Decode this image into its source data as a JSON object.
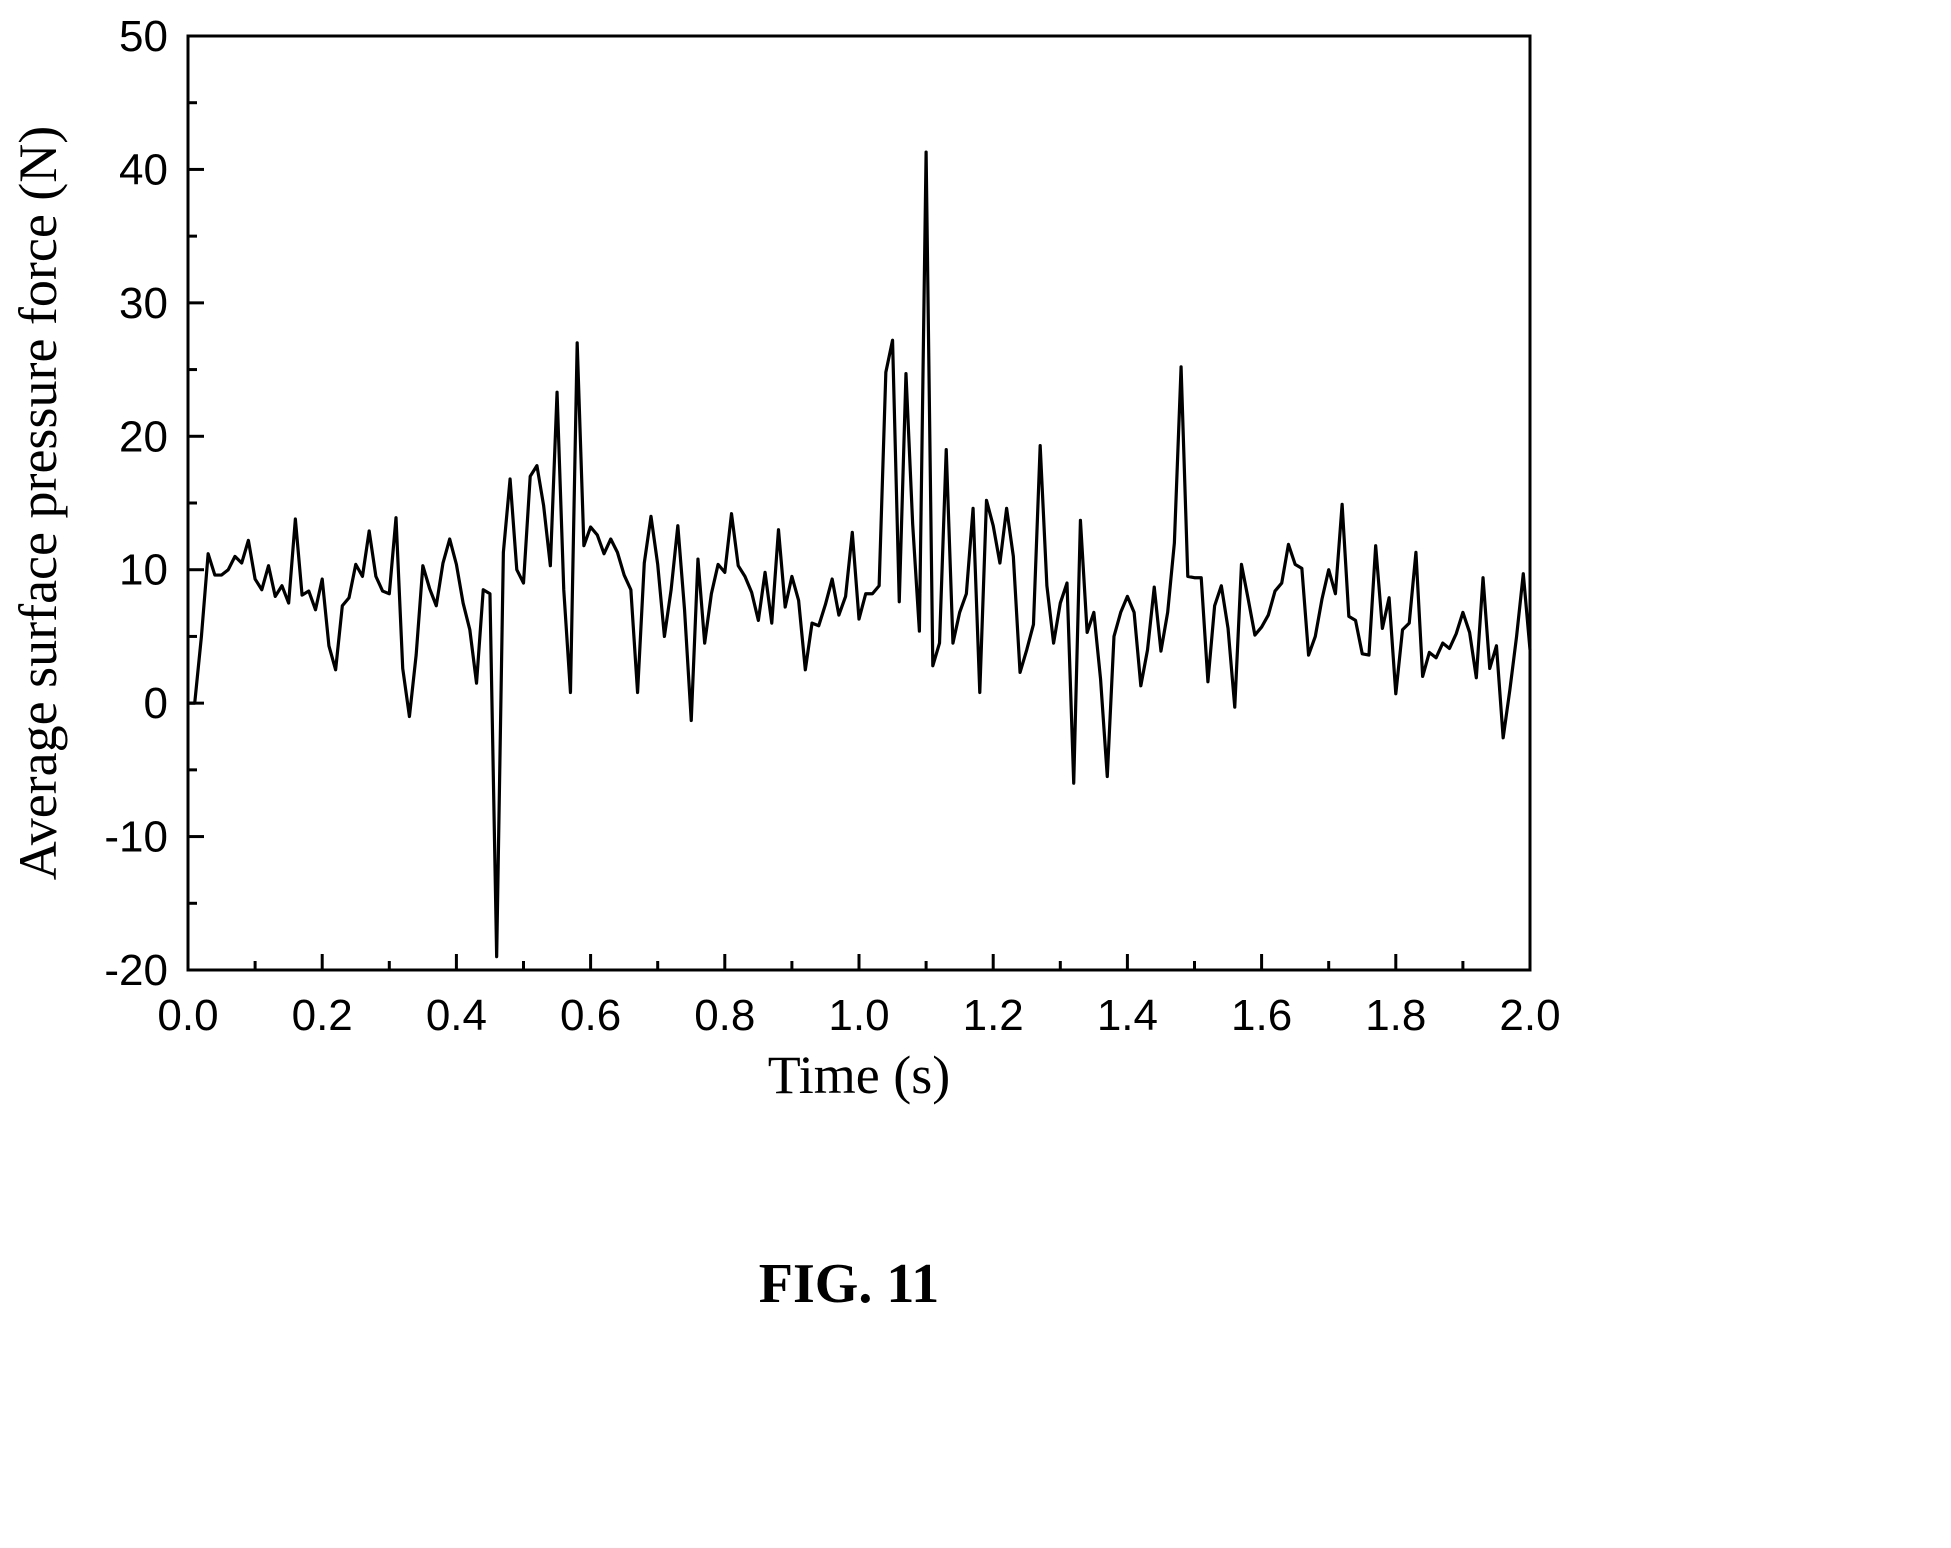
{
  "caption": "FIG. 11",
  "chart_data": {
    "type": "line",
    "xlabel": "Time (s)",
    "ylabel": "Average surface pressure force (N)",
    "xlim": [
      0.0,
      2.0
    ],
    "ylim": [
      -20,
      50
    ],
    "xticks": [
      "0.0",
      "0.2",
      "0.4",
      "0.6",
      "0.8",
      "1.0",
      "1.2",
      "1.4",
      "1.6",
      "1.8",
      "2.0"
    ],
    "yticks": [
      "-20",
      "-10",
      "0",
      "10",
      "20",
      "30",
      "40",
      "50"
    ],
    "grid": false,
    "legend": "none",
    "line_color": "#000000",
    "series": [
      {
        "x": [
          0.0,
          0.01,
          0.02,
          0.03,
          0.04,
          0.05,
          0.06,
          0.07,
          0.08,
          0.09,
          0.1,
          0.11,
          0.12,
          0.13,
          0.14,
          0.15,
          0.16,
          0.17,
          0.18,
          0.19,
          0.2,
          0.21,
          0.22,
          0.23,
          0.24,
          0.25,
          0.26,
          0.27,
          0.28,
          0.29,
          0.3,
          0.31,
          0.32,
          0.33,
          0.34,
          0.35,
          0.36,
          0.37,
          0.38,
          0.39,
          0.4,
          0.41,
          0.42,
          0.43,
          0.44,
          0.45,
          0.46,
          0.47,
          0.48,
          0.49,
          0.5,
          0.51,
          0.52,
          0.53,
          0.54,
          0.55,
          0.56,
          0.57,
          0.58,
          0.59,
          0.6,
          0.61,
          0.62,
          0.63,
          0.64,
          0.65,
          0.66,
          0.67,
          0.68,
          0.69,
          0.7,
          0.71,
          0.72,
          0.73,
          0.74,
          0.75,
          0.76,
          0.77,
          0.78,
          0.79,
          0.8,
          0.81,
          0.82,
          0.83,
          0.84,
          0.85,
          0.86,
          0.87,
          0.88,
          0.89,
          0.9,
          0.91,
          0.92,
          0.93,
          0.94,
          0.95,
          0.96,
          0.97,
          0.98,
          0.99,
          1.0,
          1.01,
          1.02,
          1.03,
          1.04,
          1.05,
          1.06,
          1.07,
          1.08,
          1.09,
          1.1,
          1.11,
          1.12,
          1.13,
          1.14,
          1.15,
          1.16,
          1.17,
          1.18,
          1.19,
          1.2,
          1.21,
          1.22,
          1.23,
          1.24,
          1.25,
          1.26,
          1.27,
          1.28,
          1.29,
          1.3,
          1.31,
          1.32,
          1.33,
          1.34,
          1.35,
          1.36,
          1.37,
          1.38,
          1.39,
          1.4,
          1.41,
          1.42,
          1.43,
          1.44,
          1.45,
          1.46,
          1.47,
          1.48,
          1.49,
          1.5,
          1.51,
          1.52,
          1.53,
          1.54,
          1.55,
          1.56,
          1.57,
          1.58,
          1.59,
          1.6,
          1.61,
          1.62,
          1.63,
          1.64,
          1.65,
          1.66,
          1.67,
          1.68,
          1.69,
          1.7,
          1.71,
          1.72,
          1.73,
          1.74,
          1.75,
          1.76,
          1.77,
          1.78,
          1.79,
          1.8,
          1.81,
          1.82,
          1.83,
          1.84,
          1.85,
          1.86,
          1.87,
          1.88,
          1.89,
          1.9,
          1.91,
          1.92,
          1.93,
          1.94,
          1.95,
          1.96,
          1.97,
          1.98,
          1.99,
          2.0
        ],
        "y": [
          0.0,
          0.0,
          5.0,
          11.2,
          9.6,
          9.6,
          10.0,
          11.0,
          10.5,
          12.2,
          9.3,
          8.5,
          10.3,
          8.0,
          8.8,
          7.5,
          13.8,
          8.1,
          8.4,
          7.0,
          9.3,
          4.3,
          2.5,
          7.3,
          7.9,
          10.4,
          9.5,
          12.9,
          9.5,
          8.4,
          8.2,
          13.9,
          2.6,
          -1.0,
          3.6,
          10.3,
          8.6,
          7.3,
          10.5,
          12.3,
          10.4,
          7.5,
          5.5,
          1.5,
          8.5,
          8.2,
          -19.0,
          11.3,
          16.8,
          10.0,
          9.0,
          17.0,
          17.8,
          14.8,
          10.3,
          23.3,
          8.5,
          0.8,
          27.0,
          11.8,
          13.2,
          12.6,
          11.2,
          12.3,
          11.3,
          9.6,
          8.5,
          0.8,
          10.5,
          14.0,
          10.4,
          5.0,
          8.5,
          13.3,
          7.0,
          -1.3,
          10.8,
          4.5,
          8.2,
          10.4,
          9.8,
          14.2,
          10.3,
          9.5,
          8.3,
          6.2,
          9.8,
          6.0,
          13.0,
          7.2,
          9.5,
          7.7,
          2.5,
          6.0,
          5.8,
          7.4,
          9.3,
          6.6,
          8.0,
          12.8,
          6.3,
          8.2,
          8.2,
          8.8,
          24.8,
          27.2,
          7.6,
          24.7,
          13.4,
          5.4,
          41.3,
          2.8,
          4.5,
          19.0,
          4.5,
          6.8,
          8.2,
          14.6,
          0.8,
          15.2,
          13.3,
          10.5,
          14.6,
          11.0,
          2.3,
          4.0,
          5.9,
          19.3,
          8.8,
          4.5,
          7.5,
          9.0,
          -6.0,
          13.7,
          5.3,
          6.8,
          1.8,
          -5.5,
          5.0,
          6.8,
          8.0,
          6.8,
          1.3,
          4.0,
          8.7,
          3.9,
          6.8,
          12.0,
          25.2,
          9.5,
          9.4,
          9.4,
          1.6,
          7.3,
          8.8,
          5.6,
          -0.3,
          10.4,
          7.8,
          5.1,
          5.7,
          6.6,
          8.4,
          9.0,
          11.9,
          10.4,
          10.1,
          3.6,
          5.0,
          7.8,
          10.0,
          8.2,
          14.9,
          6.5,
          6.2,
          3.7,
          3.6,
          11.8,
          5.6,
          7.9,
          0.7,
          5.5,
          6.0,
          11.3,
          2.0,
          3.8,
          3.4,
          4.5,
          4.1,
          5.2,
          6.8,
          5.3,
          1.9,
          9.4,
          2.6,
          4.3,
          -2.6,
          1.0,
          5.0,
          9.7,
          4.0
        ]
      }
    ]
  }
}
